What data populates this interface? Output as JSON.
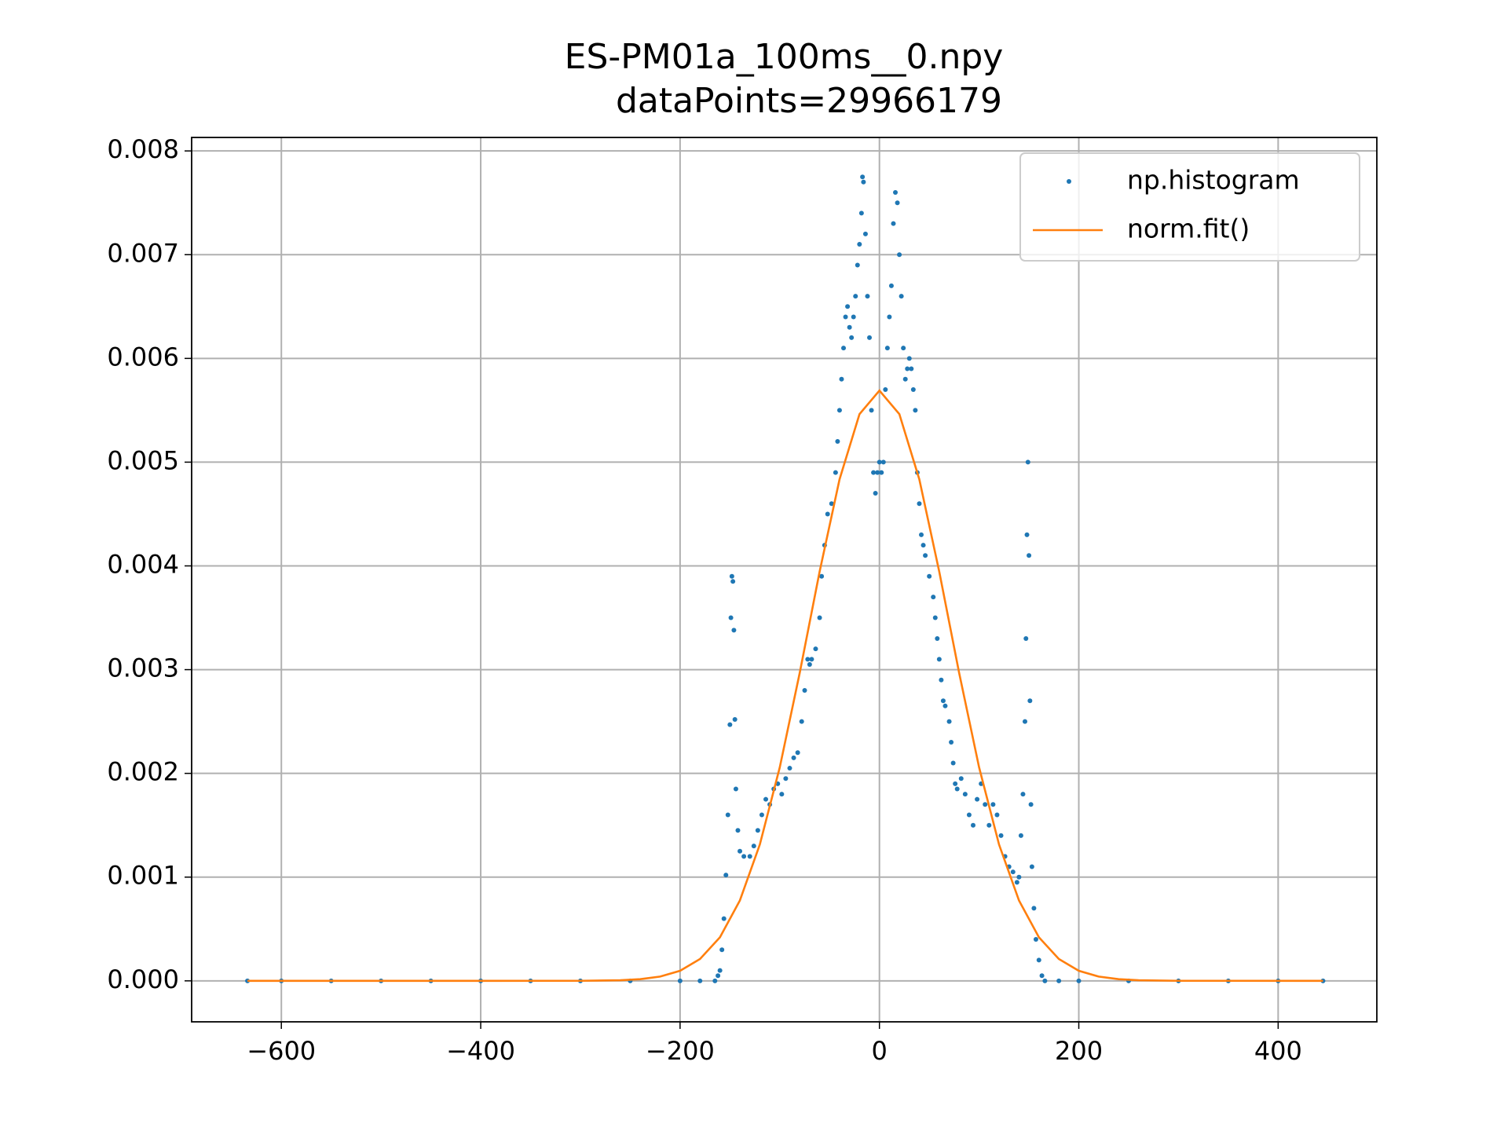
{
  "chart_data": {
    "type": "scatter",
    "title": "ES-PM01a_100ms__0.npy",
    "subtitle": "dataPoints=29966179",
    "xlim": [
      -690,
      499
    ],
    "ylim": [
      -0.000395,
      0.00813
    ],
    "xticks": [
      {
        "value": -600,
        "label": "−600"
      },
      {
        "value": -400,
        "label": "−400"
      },
      {
        "value": -200,
        "label": "−200"
      },
      0,
      200,
      400
    ],
    "yticks": [
      {
        "value": 0,
        "label": "0.000"
      },
      0.001,
      0.002,
      0.003,
      0.004,
      0.005,
      0.006,
      0.007,
      0.008
    ],
    "grid": true,
    "legend": "upper right",
    "series": [
      {
        "name": "np.histogram",
        "type": "scatter",
        "color": "#1f77b4",
        "x": [
          -634,
          -600,
          -550,
          -500,
          -450,
          -400,
          -350,
          -300,
          -250,
          -200,
          -180,
          -165,
          -162,
          -160,
          -158,
          -156,
          -154,
          -152,
          -150,
          -149,
          -148,
          -147,
          -146,
          -145,
          -144,
          -142,
          -140,
          -136,
          -130,
          -126,
          -122,
          -118,
          -114,
          -110,
          -106,
          -102,
          -98,
          -94,
          -90,
          -86,
          -82,
          -78,
          -75,
          -72,
          -70,
          -68,
          -64,
          -60,
          -58,
          -55,
          -52,
          -48,
          -44,
          -42,
          -40,
          -38,
          -36,
          -34,
          -32,
          -30,
          -28,
          -26,
          -24,
          -22,
          -20,
          -18,
          -17,
          -16,
          -14,
          -12,
          -10,
          -8,
          -6,
          -4,
          -2,
          0,
          2,
          4,
          6,
          8,
          10,
          12,
          14,
          16,
          18,
          20,
          22,
          24,
          26,
          28,
          30,
          32,
          34,
          36,
          38,
          40,
          42,
          44,
          46,
          50,
          54,
          56,
          58,
          60,
          62,
          64,
          66,
          70,
          72,
          74,
          76,
          78,
          82,
          86,
          90,
          94,
          98,
          102,
          106,
          110,
          114,
          118,
          122,
          126,
          130,
          134,
          138,
          140,
          142,
          144,
          146,
          147,
          148,
          149,
          150,
          151,
          152,
          153,
          155,
          157,
          160,
          163,
          166,
          180,
          200,
          250,
          300,
          350,
          400,
          445
        ],
        "values": [
          0,
          0,
          0,
          0,
          0,
          0,
          0,
          0,
          0,
          0,
          0,
          0,
          5e-05,
          0.0001,
          0.0003,
          0.0006,
          0.00102,
          0.0016,
          0.00247,
          0.0035,
          0.0039,
          0.00385,
          0.00338,
          0.00252,
          0.00185,
          0.00145,
          0.00125,
          0.0012,
          0.0012,
          0.0013,
          0.00145,
          0.0016,
          0.00175,
          0.0017,
          0.00185,
          0.0019,
          0.0018,
          0.00195,
          0.00205,
          0.00215,
          0.0022,
          0.0025,
          0.0028,
          0.0031,
          0.00305,
          0.0031,
          0.0032,
          0.0035,
          0.0039,
          0.0042,
          0.0045,
          0.0046,
          0.0049,
          0.0052,
          0.0055,
          0.0058,
          0.0061,
          0.0064,
          0.0065,
          0.0063,
          0.0062,
          0.0064,
          0.0066,
          0.0069,
          0.0071,
          0.0074,
          0.00775,
          0.0077,
          0.0072,
          0.0066,
          0.0062,
          0.0055,
          0.0049,
          0.0047,
          0.0049,
          0.005,
          0.0049,
          0.005,
          0.0057,
          0.0061,
          0.0064,
          0.0067,
          0.0073,
          0.0076,
          0.0075,
          0.007,
          0.0066,
          0.0061,
          0.0058,
          0.0059,
          0.006,
          0.0059,
          0.0057,
          0.0055,
          0.0049,
          0.0046,
          0.0043,
          0.0042,
          0.0041,
          0.0039,
          0.0037,
          0.0035,
          0.0033,
          0.0031,
          0.0029,
          0.0027,
          0.00265,
          0.0025,
          0.0023,
          0.0021,
          0.0019,
          0.00185,
          0.00195,
          0.0018,
          0.0016,
          0.0015,
          0.00175,
          0.0019,
          0.0017,
          0.0015,
          0.0017,
          0.0016,
          0.0014,
          0.0012,
          0.0011,
          0.00105,
          0.00095,
          0.001,
          0.0014,
          0.0018,
          0.0025,
          0.0033,
          0.0043,
          0.005,
          0.0041,
          0.0027,
          0.0017,
          0.0011,
          0.0007,
          0.0004,
          0.0002,
          5e-05,
          0,
          0,
          0,
          0,
          0,
          0,
          0,
          0
        ]
      },
      {
        "name": "norm.fit()",
        "type": "line",
        "color": "#ff7f0e",
        "x": [
          -634,
          -300,
          -260,
          -240,
          -220,
          -200,
          -180,
          -160,
          -140,
          -120,
          -100,
          -80,
          -60,
          -40,
          -20,
          0,
          20,
          40,
          60,
          80,
          100,
          120,
          140,
          160,
          180,
          200,
          220,
          240,
          260,
          300,
          445
        ],
        "values": [
          0,
          6e-07,
          5.9e-06,
          1.62e-05,
          4.13e-05,
          9.72e-05,
          0.000211,
          0.00042,
          0.000775,
          0.001314,
          0.002057,
          0.002967,
          0.003945,
          0.004835,
          0.005463,
          0.00569,
          0.005463,
          0.004835,
          0.003945,
          0.002967,
          0.002057,
          0.001314,
          0.000775,
          0.00042,
          0.000211,
          9.72e-05,
          4.13e-05,
          1.62e-05,
          5.9e-06,
          6e-07,
          0
        ]
      }
    ]
  }
}
